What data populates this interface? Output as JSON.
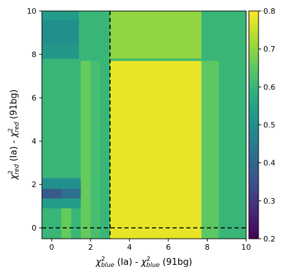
{
  "chart_data": {
    "type": "heatmap",
    "title": "",
    "xlabel": {
      "chi": "χ",
      "sup": "2",
      "sub": "blue",
      "a": " (Ia) - ",
      "b": " (91bg)"
    },
    "ylabel": {
      "chi": "χ",
      "sup": "2",
      "sub": "red",
      "a": " (Ia) - ",
      "b": " (91bg)"
    },
    "xlim": [
      -0.5,
      10
    ],
    "ylim": [
      -0.5,
      10
    ],
    "xticks": [
      0,
      2,
      4,
      6,
      8,
      10
    ],
    "yticks": [
      0,
      2,
      4,
      6,
      8,
      10
    ],
    "colorbar": {
      "colormap": "viridis",
      "vmin": 0.2,
      "vmax": 0.8,
      "ticks": [
        0.2,
        0.3,
        0.4,
        0.5,
        0.6,
        0.7,
        0.8
      ]
    },
    "reference_lines": [
      {
        "orientation": "vertical",
        "value": 3.0,
        "style": "dashed",
        "color": "#000000"
      },
      {
        "orientation": "horizontal",
        "value": 0.0,
        "style": "dashed",
        "color": "#000000"
      }
    ],
    "cells": [
      {
        "x": [
          -0.5,
          10
        ],
        "y": [
          -0.5,
          10
        ],
        "value": 0.6
      },
      {
        "x": [
          -0.5,
          1.4
        ],
        "y": [
          7.8,
          10
        ],
        "value": 0.53
      },
      {
        "x": [
          -0.5,
          1.4
        ],
        "y": [
          8.5,
          9.6
        ],
        "value": 0.5
      },
      {
        "x": [
          -0.5,
          1.4
        ],
        "y": [
          7.8,
          8.5
        ],
        "value": 0.52
      },
      {
        "x": [
          -0.5,
          2.0
        ],
        "y": [
          1.8,
          2.3
        ],
        "value": 0.5
      },
      {
        "x": [
          -0.5,
          2.0
        ],
        "y": [
          1.35,
          1.8
        ],
        "value": 0.42
      },
      {
        "x": [
          -0.5,
          0.5
        ],
        "y": [
          1.35,
          1.8
        ],
        "value": 0.37
      },
      {
        "x": [
          -0.5,
          1.5
        ],
        "y": [
          0.9,
          1.35
        ],
        "value": 0.53
      },
      {
        "x": [
          0.5,
          1.0
        ],
        "y": [
          -0.5,
          0.9
        ],
        "value": 0.66
      },
      {
        "x": [
          1.5,
          2.0
        ],
        "y": [
          -0.5,
          7.7
        ],
        "value": 0.66
      },
      {
        "x": [
          2.0,
          2.5
        ],
        "y": [
          -0.5,
          7.7
        ],
        "value": 0.62
      },
      {
        "x": [
          3.0,
          7.7
        ],
        "y": [
          7.8,
          10
        ],
        "value": 0.7
      },
      {
        "x": [
          7.7,
          8.6
        ],
        "y": [
          -0.5,
          7.7
        ],
        "value": 0.65
      },
      {
        "x": [
          3.0,
          7.7
        ],
        "y": [
          -0.5,
          7.7
        ],
        "value": 0.78
      }
    ]
  }
}
